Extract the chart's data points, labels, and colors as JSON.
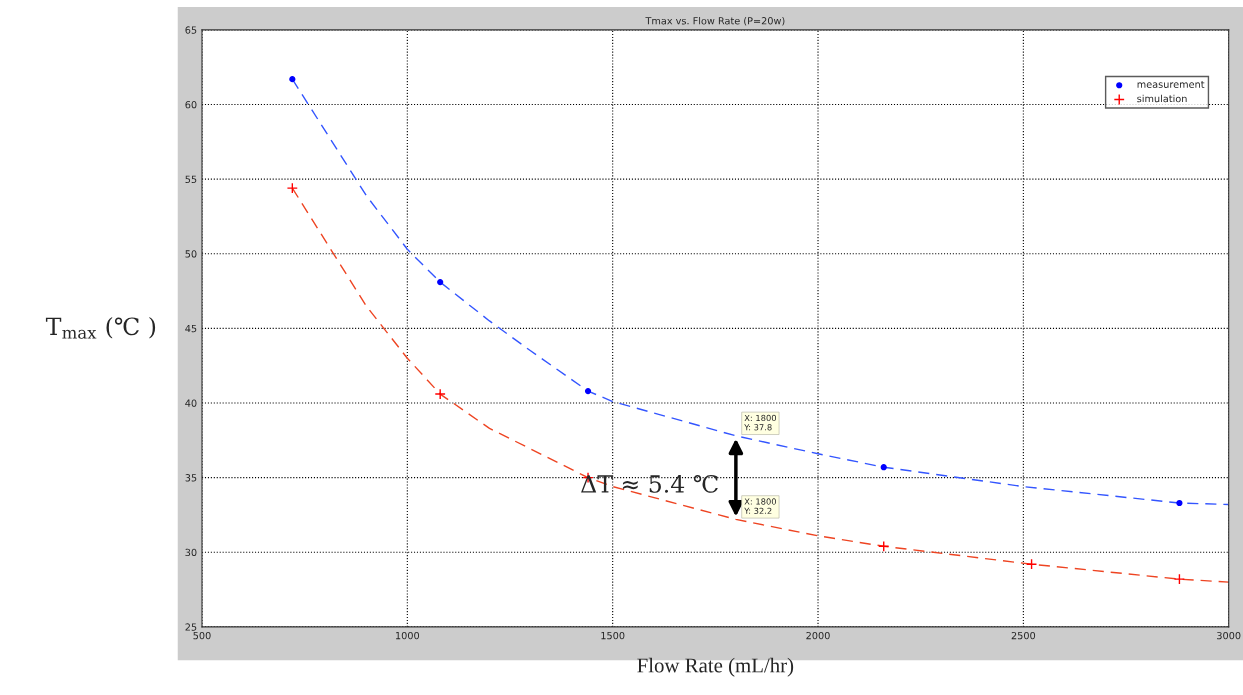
{
  "chart_data": {
    "type": "line",
    "title": "Tmax vs. Flow Rate (P=20w)",
    "xlabel": "Flow Rate (mL/hr)",
    "ylabel": "T$_{max}$ (℃ )",
    "series": [
      {
        "name": "measurement",
        "type": "scatter",
        "color": "#0000ff",
        "marker": "circle",
        "x": [
          720,
          1080,
          1440,
          2160,
          2880
        ],
        "values": [
          61.7,
          48.1,
          40.8,
          35.7,
          33.3
        ]
      },
      {
        "name": "simulation",
        "type": "scatter",
        "color": "#ff0000",
        "marker": "cross",
        "x": [
          720,
          1080,
          1440,
          2160,
          2520,
          2880
        ],
        "values": [
          54.4,
          40.6,
          35.0,
          30.4,
          29.2,
          28.2
        ]
      },
      {
        "color": "#3355ff",
        "line_style": "dashed",
        "x": [
          720,
          900,
          1000,
          1080,
          1200,
          1300,
          1440,
          1500,
          1800,
          2000,
          2160,
          2500,
          2880,
          3000
        ],
        "values": [
          61.7,
          53.9,
          50.3,
          48.1,
          45.5,
          43.5,
          40.8,
          40.1,
          37.8,
          36.6,
          35.7,
          34.4,
          33.3,
          33.2
        ]
      },
      {
        "color": "#ee4422",
        "line_style": "dashed",
        "x": [
          720,
          900,
          1000,
          1080,
          1200,
          1440,
          1500,
          1800,
          2000,
          2160,
          2520,
          2880,
          3000
        ],
        "values": [
          54.4,
          46.5,
          43.0,
          40.6,
          38.3,
          35.0,
          34.4,
          32.2,
          31.1,
          30.4,
          29.2,
          28.2,
          28.0
        ]
      }
    ],
    "annotations": [
      {
        "text": "X: 1800\nY: 37.8",
        "x": 1800,
        "y": 37.8
      },
      {
        "text": "X: 1800\nY: 32.2",
        "x": 1800,
        "y": 32.2
      },
      "ΔT ≈ 5.4 ℃"
    ],
    "xlim": [
      500,
      3000
    ],
    "xticks": [
      500,
      1000,
      1500,
      2000,
      2500,
      3000
    ],
    "ylim": [
      25,
      65
    ],
    "yticks": [
      25,
      30,
      35,
      40,
      45,
      50,
      55,
      60,
      65
    ],
    "grid": true,
    "legend": "top right"
  }
}
